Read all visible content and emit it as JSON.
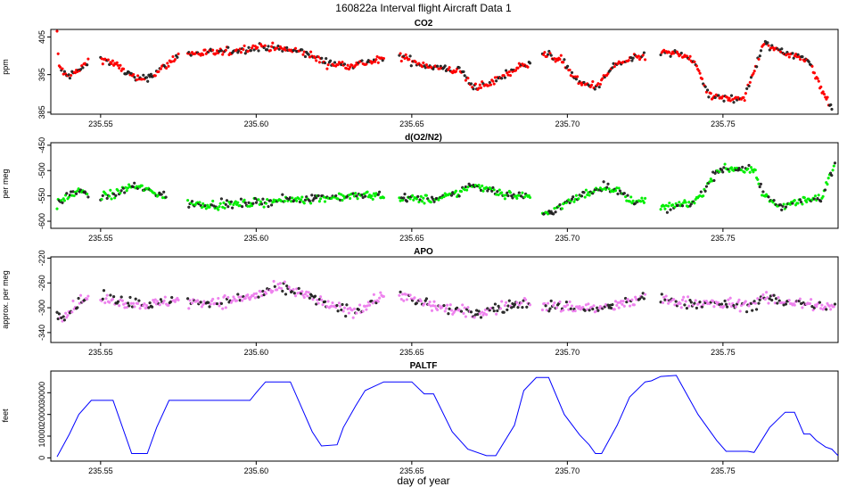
{
  "title": "160822a   Interval flight Aircraft Data 1",
  "xlabel": "day of year",
  "colors": {
    "co2": "#ff0000",
    "o2n2": "#00ee00",
    "apo": "#ee82ee",
    "paltf": "#0000ff",
    "outline": "#000000"
  },
  "chart_data": [
    {
      "type": "scatter",
      "title": "CO2",
      "ylabel": "ppm",
      "xlim": [
        235.534,
        235.787
      ],
      "ylim": [
        384.5,
        407
      ],
      "xticks": [
        "235.55",
        "235.60",
        "235.65",
        "235.70",
        "235.75"
      ],
      "xtick_values": [
        235.55,
        235.6,
        235.65,
        235.7,
        235.75
      ],
      "yticks": [
        "385",
        "395",
        "405"
      ],
      "ytick_values": [
        385,
        395,
        405
      ],
      "noise": 0.9,
      "segments": [
        [
          [
            235.536,
            406
          ],
          [
            235.5365,
            397.5
          ],
          [
            235.539,
            394.5
          ],
          [
            235.543,
            396
          ],
          [
            235.546,
            398.5
          ]
        ],
        [
          [
            235.55,
            399.5
          ],
          [
            235.555,
            397.5
          ],
          [
            235.562,
            393.5
          ],
          [
            235.567,
            395
          ],
          [
            235.572,
            398
          ],
          [
            235.575,
            400.5
          ]
        ],
        [
          [
            235.578,
            400.5
          ],
          [
            235.59,
            401
          ],
          [
            235.602,
            402.5
          ],
          [
            235.615,
            401
          ],
          [
            235.623,
            398
          ],
          [
            235.63,
            397.5
          ],
          [
            235.641,
            399
          ]
        ],
        [
          [
            235.646,
            400
          ],
          [
            235.652,
            398
          ],
          [
            235.66,
            396.5
          ],
          [
            235.666,
            396
          ],
          [
            235.669,
            392
          ],
          [
            235.674,
            392
          ],
          [
            235.68,
            395
          ],
          [
            235.688,
            398.5
          ]
        ],
        [
          [
            235.692,
            400.5
          ],
          [
            235.698,
            399
          ],
          [
            235.704,
            392.5
          ],
          [
            235.71,
            392
          ],
          [
            235.715,
            397.5
          ],
          [
            235.725,
            400
          ]
        ],
        [
          [
            235.73,
            401
          ],
          [
            235.738,
            400
          ],
          [
            235.742,
            397
          ],
          [
            235.745,
            389.5
          ],
          [
            235.75,
            388.5
          ],
          [
            235.757,
            389
          ],
          [
            235.76,
            396
          ],
          [
            235.763,
            403
          ],
          [
            235.77,
            401
          ],
          [
            235.778,
            398.5
          ],
          [
            235.78,
            394
          ],
          [
            235.785,
            386
          ]
        ]
      ]
    },
    {
      "type": "scatter",
      "title": "d(O2/N2)",
      "ylabel": "per meg",
      "xlim": [
        235.534,
        235.787
      ],
      "ylim": [
        -614,
        -445
      ],
      "xticks": [
        "235.55",
        "235.60",
        "235.65",
        "235.70",
        "235.75"
      ],
      "xtick_values": [
        235.55,
        235.6,
        235.65,
        235.7,
        235.75
      ],
      "yticks": [
        "-600",
        "-550",
        "-500",
        "-450"
      ],
      "ytick_values": [
        -600,
        -550,
        -500,
        -450
      ],
      "noise": 7,
      "segments": [
        [
          [
            235.536,
            -568
          ],
          [
            235.54,
            -548
          ],
          [
            235.543,
            -540
          ],
          [
            235.546,
            -550
          ]
        ],
        [
          [
            235.55,
            -552
          ],
          [
            235.555,
            -546
          ],
          [
            235.56,
            -530
          ],
          [
            235.565,
            -538
          ],
          [
            235.571,
            -552
          ]
        ],
        [
          [
            235.578,
            -565
          ],
          [
            235.59,
            -568
          ],
          [
            235.6,
            -563
          ],
          [
            235.61,
            -558
          ],
          [
            235.625,
            -552
          ],
          [
            235.641,
            -548
          ]
        ],
        [
          [
            235.646,
            -555
          ],
          [
            235.658,
            -557
          ],
          [
            235.665,
            -545
          ],
          [
            235.668,
            -530
          ],
          [
            235.675,
            -535
          ],
          [
            235.68,
            -548
          ],
          [
            235.688,
            -550
          ]
        ],
        [
          [
            235.692,
            -590
          ],
          [
            235.698,
            -570
          ],
          [
            235.705,
            -548
          ],
          [
            235.712,
            -530
          ],
          [
            235.716,
            -540
          ],
          [
            235.72,
            -558
          ],
          [
            235.725,
            -560
          ]
        ],
        [
          [
            235.73,
            -575
          ],
          [
            235.74,
            -565
          ],
          [
            235.744,
            -540
          ],
          [
            235.748,
            -500
          ],
          [
            235.753,
            -495
          ],
          [
            235.76,
            -500
          ],
          [
            235.763,
            -548
          ],
          [
            235.768,
            -570
          ],
          [
            235.775,
            -560
          ],
          [
            235.782,
            -555
          ],
          [
            235.784,
            -510
          ],
          [
            235.786,
            -490
          ]
        ]
      ]
    },
    {
      "type": "scatter",
      "title": "APO",
      "ylabel": "approx. per meg",
      "xlim": [
        235.534,
        235.787
      ],
      "ylim": [
        -356,
        -218
      ],
      "xticks": [
        "235.55",
        "235.60",
        "235.65",
        "235.70",
        "235.75"
      ],
      "xtick_values": [
        235.55,
        235.6,
        235.65,
        235.7,
        235.75
      ],
      "yticks": [
        "-340",
        "-300",
        "-260",
        "-220"
      ],
      "ytick_values": [
        -340,
        -300,
        -260,
        -220
      ],
      "noise": 8,
      "segments": [
        [
          [
            235.536,
            -312
          ],
          [
            235.539,
            -310
          ],
          [
            235.541,
            -300
          ],
          [
            235.544,
            -288
          ],
          [
            235.546,
            -285
          ]
        ],
        [
          [
            235.55,
            -285
          ],
          [
            235.56,
            -292
          ],
          [
            235.568,
            -295
          ],
          [
            235.575,
            -285
          ]
        ],
        [
          [
            235.578,
            -292
          ],
          [
            235.59,
            -290
          ],
          [
            235.6,
            -280
          ],
          [
            235.608,
            -268
          ],
          [
            235.615,
            -278
          ],
          [
            235.625,
            -300
          ],
          [
            235.632,
            -305
          ],
          [
            235.641,
            -280
          ]
        ],
        [
          [
            235.646,
            -275
          ],
          [
            235.65,
            -288
          ],
          [
            235.66,
            -300
          ],
          [
            235.67,
            -310
          ],
          [
            235.68,
            -298
          ],
          [
            235.688,
            -290
          ]
        ],
        [
          [
            235.692,
            -298
          ],
          [
            235.7,
            -298
          ],
          [
            235.71,
            -302
          ],
          [
            235.72,
            -292
          ],
          [
            235.725,
            -280
          ]
        ],
        [
          [
            235.73,
            -288
          ],
          [
            235.74,
            -292
          ],
          [
            235.75,
            -295
          ],
          [
            235.76,
            -295
          ],
          [
            235.763,
            -285
          ],
          [
            235.77,
            -290
          ],
          [
            235.778,
            -295
          ],
          [
            235.786,
            -300
          ]
        ]
      ]
    },
    {
      "type": "line",
      "title": "PALTF",
      "ylabel": "feet",
      "xlim": [
        235.534,
        235.787
      ],
      "ylim": [
        -1500,
        40000
      ],
      "xticks": [
        "235.55",
        "235.60",
        "235.65",
        "235.70",
        "235.75"
      ],
      "xtick_values": [
        235.55,
        235.6,
        235.65,
        235.7,
        235.75
      ],
      "yticks": [
        "0",
        "10000",
        "20000",
        "30000"
      ],
      "ytick_values": [
        0,
        10000,
        20000,
        30000
      ],
      "x": [
        235.536,
        235.54,
        235.543,
        235.547,
        235.554,
        235.56,
        235.562,
        235.565,
        235.568,
        235.572,
        235.576,
        235.58,
        235.598,
        235.6,
        235.603,
        235.611,
        235.618,
        235.621,
        235.626,
        235.628,
        235.632,
        235.635,
        235.641,
        235.65,
        235.654,
        235.657,
        235.663,
        235.668,
        235.674,
        235.677,
        235.683,
        235.686,
        235.69,
        235.694,
        235.699,
        235.704,
        235.707,
        235.709,
        235.711,
        235.716,
        235.72,
        235.725,
        235.727,
        235.73,
        235.735,
        235.742,
        235.748,
        235.751,
        235.758,
        235.76,
        235.765,
        235.77,
        235.772,
        235.773,
        235.776,
        235.778,
        235.78,
        235.783,
        235.785,
        235.787
      ],
      "y": [
        500,
        11000,
        20000,
        26500,
        26500,
        2000,
        2000,
        2000,
        14000,
        26500,
        26500,
        26500,
        26500,
        30000,
        35000,
        35000,
        12000,
        5500,
        6000,
        14000,
        24000,
        31000,
        35000,
        35000,
        29500,
        29500,
        12000,
        4000,
        1000,
        1000,
        15000,
        31000,
        37000,
        37000,
        20000,
        10500,
        6000,
        2000,
        2000,
        15000,
        28000,
        35000,
        35500,
        37500,
        38000,
        20000,
        8000,
        3000,
        3000,
        2500,
        14000,
        21000,
        21000,
        21000,
        11000,
        11000,
        8000,
        5000,
        4000,
        1000
      ]
    }
  ]
}
